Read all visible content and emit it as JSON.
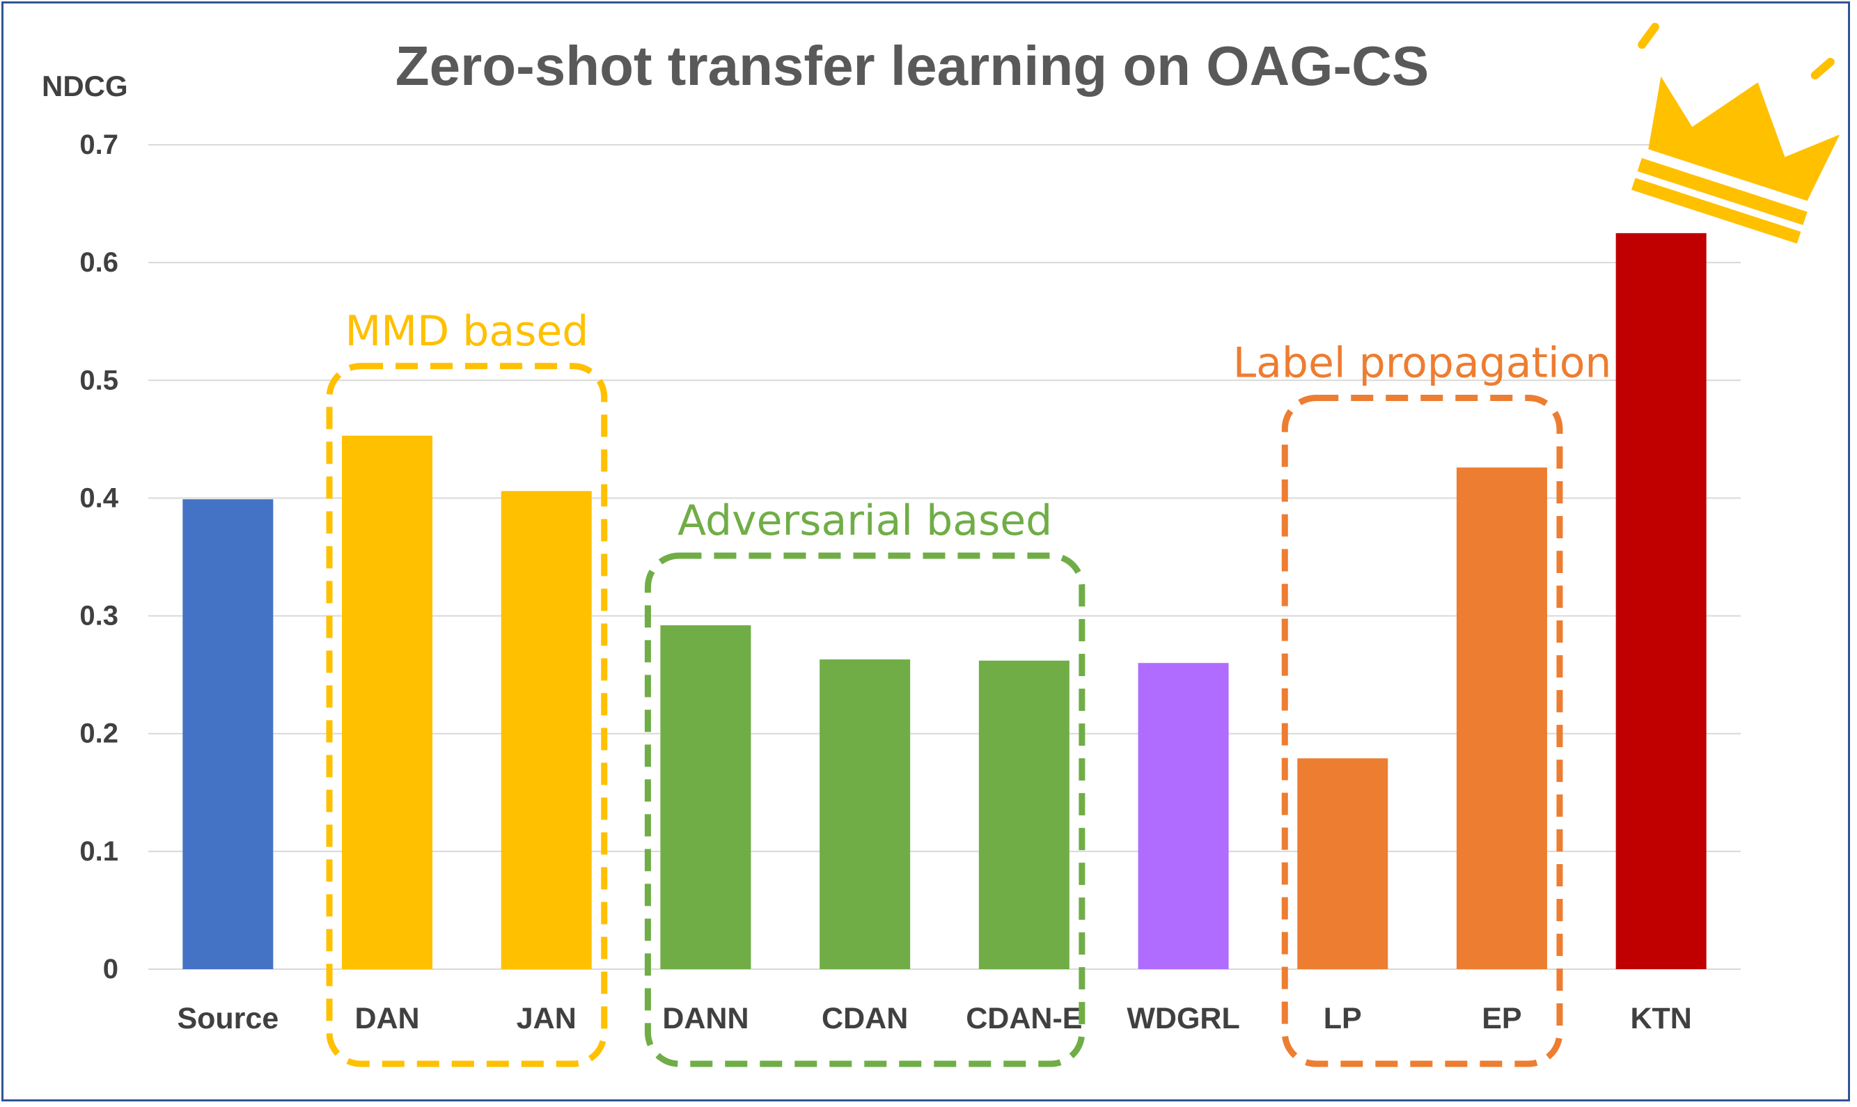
{
  "chart_data": {
    "type": "bar",
    "title": "Zero-shot transfer learning on OAG-CS",
    "ylabel": "NDCG",
    "xlabel": "",
    "ylim": [
      0,
      0.7
    ],
    "ytick_step": 0.1,
    "yticks": [
      "0",
      "0.1",
      "0.2",
      "0.3",
      "0.4",
      "0.5",
      "0.6",
      "0.7"
    ],
    "grid": true,
    "categories": [
      "Source",
      "DAN",
      "JAN",
      "DANN",
      "CDAN",
      "CDAN-E",
      "WDGRL",
      "LP",
      "EP",
      "KTN"
    ],
    "values": [
      0.399,
      0.453,
      0.406,
      0.292,
      0.263,
      0.262,
      0.26,
      0.179,
      0.426,
      0.625
    ],
    "bar_colors": [
      "#4472c4",
      "#ffc000",
      "#ffc000",
      "#70ad47",
      "#70ad47",
      "#70ad47",
      "#b06cff",
      "#ed7d31",
      "#ed7d31",
      "#c00000"
    ],
    "annotations": [
      {
        "label": "MMD based",
        "color": "#ffc000",
        "from": "DAN",
        "to": "JAN"
      },
      {
        "label": "Adversarial based",
        "color": "#70ad47",
        "from": "DANN",
        "to": "CDAN-E"
      },
      {
        "label": "Label propagation",
        "color": "#ed7d31",
        "from": "LP",
        "to": "EP"
      }
    ],
    "highlight": {
      "category": "KTN",
      "icon": "crown-icon",
      "color": "#ffc000"
    }
  }
}
